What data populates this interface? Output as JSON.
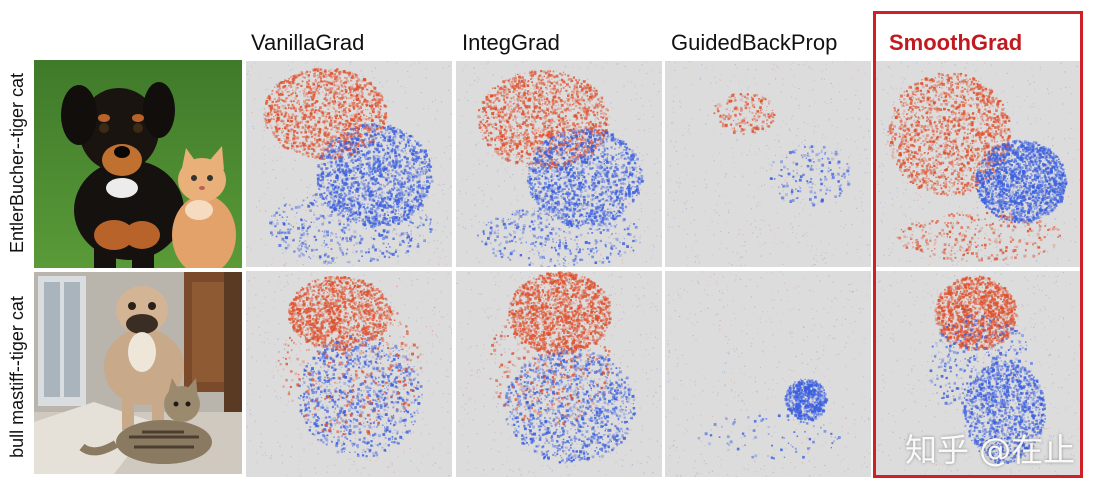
{
  "columns": [
    {
      "label": "VanillaGrad",
      "highlighted": false
    },
    {
      "label": "IntegGrad",
      "highlighted": false
    },
    {
      "label": "GuidedBackProp",
      "highlighted": false
    },
    {
      "label": "SmoothGrad",
      "highlighted": true
    }
  ],
  "rows": [
    {
      "label": "EntlerBucher--tiger cat"
    },
    {
      "label": "bull mastiff--tiger cat"
    }
  ],
  "highlight_color": "#d02027",
  "positive_color": "#e0502c",
  "negative_color": "#3a5fe0",
  "background_gray": "#dcdcdc",
  "watermark": "知乎 @在止"
}
